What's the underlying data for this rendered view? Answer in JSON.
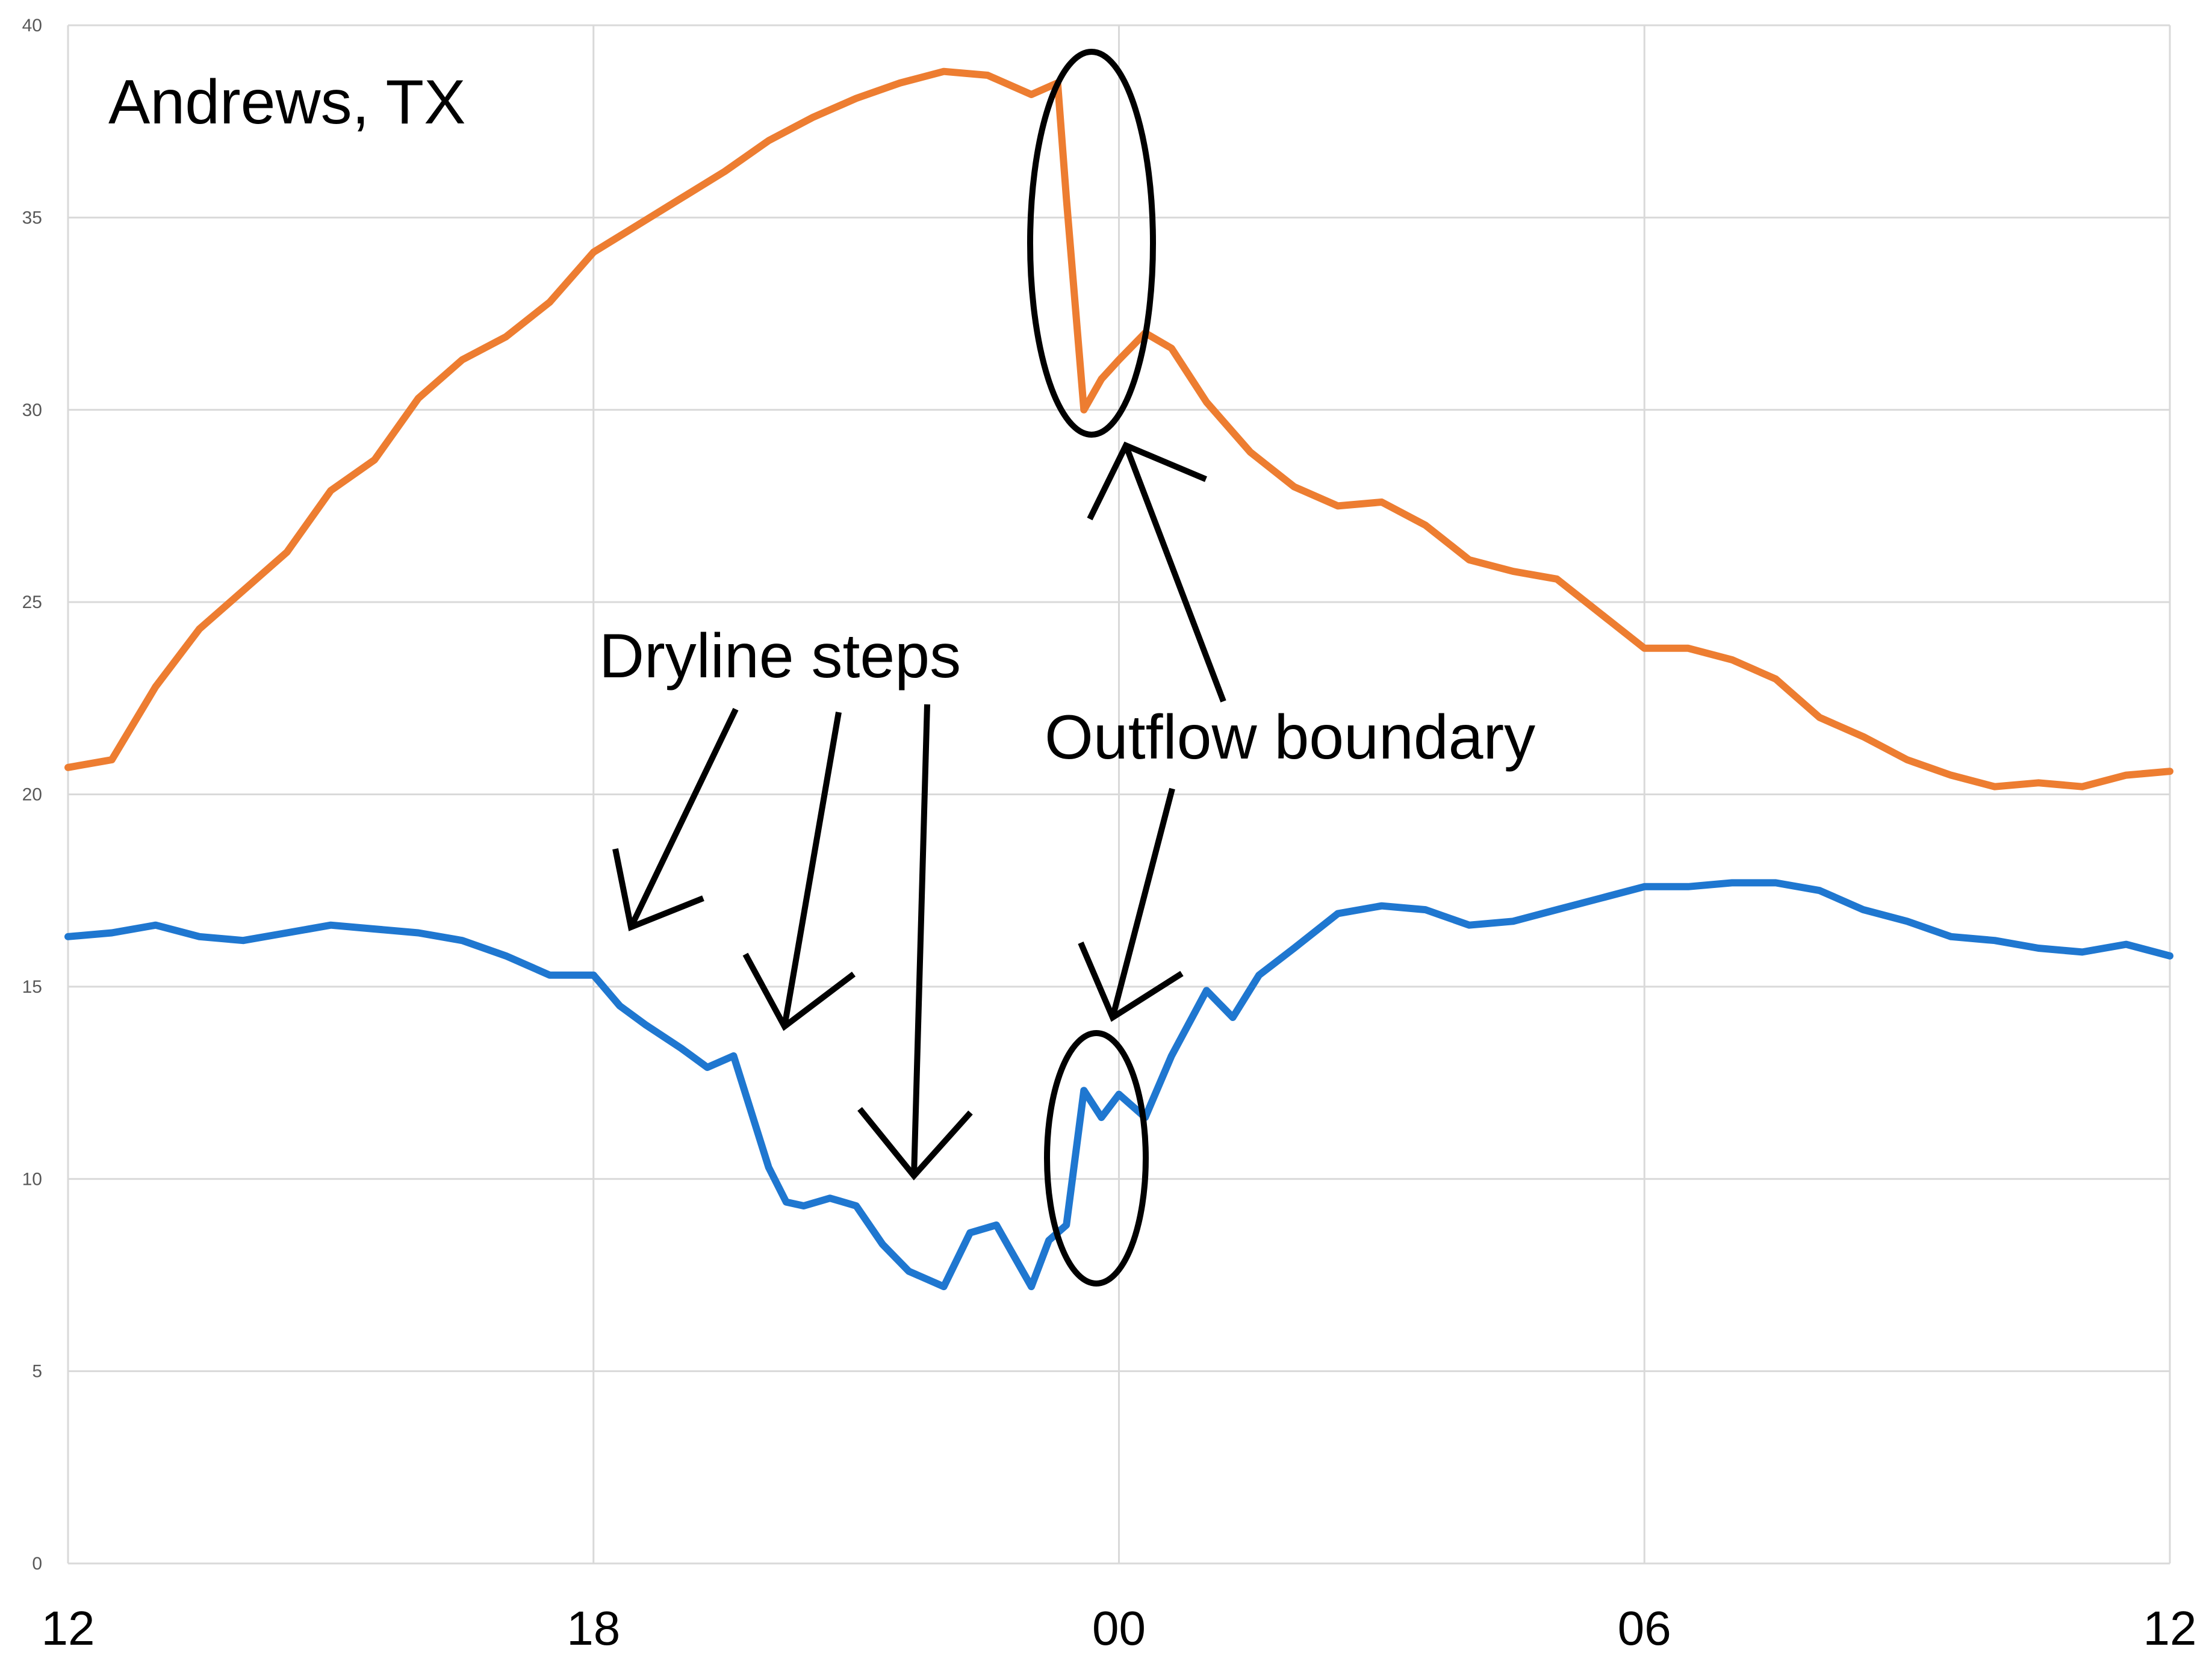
{
  "chart_data": {
    "type": "line",
    "title": "Andrews, TX",
    "xlabel": "",
    "ylabel": "",
    "x_ticks": [
      "12",
      "18",
      "00",
      "06",
      "12"
    ],
    "x_tick_hours": [
      0,
      6,
      12,
      18,
      24
    ],
    "xlim": [
      0,
      24
    ],
    "y_ticks": [
      0,
      5,
      10,
      15,
      20,
      25,
      30,
      35,
      40
    ],
    "ylim": [
      0,
      40
    ],
    "grid": true,
    "legend": "none",
    "series": [
      {
        "color": "#ED7D31",
        "x": [
          0,
          0.5,
          1,
          1.5,
          2,
          2.5,
          3,
          3.5,
          4,
          4.5,
          5,
          5.5,
          6,
          6.5,
          7,
          7.5,
          8,
          8.5,
          9,
          9.5,
          10,
          10.5,
          11,
          11.3,
          11.4,
          11.6,
          11.8,
          12,
          12.3,
          12.6,
          13,
          13.5,
          14,
          14.5,
          15,
          15.5,
          16,
          16.5,
          17,
          17.5,
          18,
          18.5,
          19,
          19.5,
          20,
          20.5,
          21,
          21.5,
          22,
          22.5,
          23,
          23.5,
          24
        ],
        "y": [
          20.7,
          20.9,
          22.8,
          24.3,
          25.3,
          26.3,
          27.9,
          28.7,
          30.3,
          31.3,
          31.9,
          32.8,
          34.1,
          34.8,
          35.5,
          36.2,
          37.0,
          37.6,
          38.1,
          38.5,
          38.8,
          38.7,
          38.2,
          38.5,
          35.5,
          30.0,
          30.8,
          31.3,
          32.0,
          31.6,
          30.2,
          28.9,
          28.0,
          27.5,
          27.6,
          27.0,
          26.1,
          25.8,
          25.6,
          24.7,
          23.8,
          23.8,
          23.5,
          23.0,
          22.0,
          21.5,
          20.9,
          20.5,
          20.2,
          20.3,
          20.2,
          20.5,
          20.6
        ]
      },
      {
        "color": "#1F77D0",
        "x": [
          0,
          0.5,
          1,
          1.5,
          2,
          2.5,
          3,
          3.5,
          4,
          4.5,
          5,
          5.5,
          6,
          6.3,
          6.6,
          7,
          7.3,
          7.6,
          8,
          8.2,
          8.4,
          8.7,
          9,
          9.3,
          9.6,
          10,
          10.3,
          10.6,
          11,
          11.2,
          11.4,
          11.6,
          11.8,
          12,
          12.3,
          12.6,
          13,
          13.3,
          13.6,
          14,
          14.5,
          15,
          15.5,
          16,
          16.5,
          17,
          17.5,
          18,
          18.5,
          19,
          19.5,
          20,
          20.5,
          21,
          21.5,
          22,
          22.5,
          23,
          23.5,
          24
        ],
        "y": [
          16.3,
          16.4,
          16.6,
          16.3,
          16.2,
          16.4,
          16.6,
          16.5,
          16.4,
          16.2,
          15.8,
          15.3,
          15.3,
          14.5,
          14.0,
          13.4,
          12.9,
          13.2,
          10.3,
          9.4,
          9.3,
          9.5,
          9.3,
          8.3,
          7.6,
          7.2,
          8.6,
          8.8,
          7.2,
          8.4,
          8.8,
          12.3,
          11.6,
          12.2,
          11.6,
          13.2,
          14.9,
          14.2,
          15.3,
          16.0,
          16.9,
          17.1,
          17.0,
          16.6,
          16.7,
          17.0,
          17.3,
          17.6,
          17.6,
          17.7,
          17.7,
          17.5,
          17.0,
          16.7,
          16.3,
          16.2,
          16.0,
          15.9,
          16.1,
          15.8
        ]
      }
    ],
    "annotations": {
      "dryline_label": "Dryline steps",
      "outflow_label": "Outflow boundary"
    }
  }
}
